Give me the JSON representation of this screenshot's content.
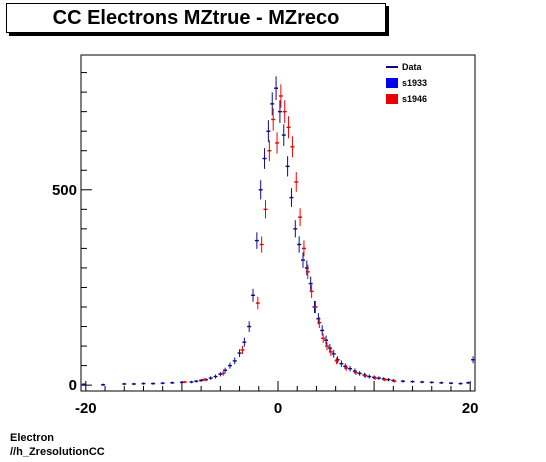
{
  "chart_data": {
    "type": "scatter",
    "title": "CC Electrons MZtrue - MZreco",
    "xlabel": "",
    "ylabel": "",
    "xlim": [
      -20.5,
      20.5
    ],
    "ylim": [
      -15,
      845
    ],
    "x_ticks": [
      -20,
      0,
      20
    ],
    "y_ticks": [
      0,
      500
    ],
    "grid": false,
    "legend_position": "top-right",
    "legend": [
      {
        "label": "Data",
        "style": "line",
        "color": "#0a0a8a"
      },
      {
        "label": "s1933",
        "style": "box",
        "color": "#0000ee"
      },
      {
        "label": "s1946",
        "style": "box",
        "color": "#ee0000"
      }
    ],
    "series": [
      {
        "name": "Data",
        "color": "#0a0a8a",
        "x": [
          -20.2,
          -18.2,
          -16,
          -15,
          -14,
          -13,
          -12,
          -11,
          -10,
          -9,
          -8.5,
          -8,
          -7.5,
          -7,
          -6.5,
          -6,
          -5.5,
          -5,
          -4.5,
          -4,
          -3.5,
          -3,
          -2.6,
          -2.2,
          -1.8,
          -1.4,
          -1,
          -0.6,
          -0.2,
          0.2,
          0.6,
          1,
          1.4,
          1.8,
          2.2,
          2.6,
          3,
          3.4,
          3.8,
          4.2,
          4.6,
          5,
          5.4,
          5.8,
          6.2,
          6.6,
          7,
          7.5,
          8,
          8.5,
          9,
          9.5,
          10,
          10.5,
          11,
          11.5,
          12,
          13,
          14,
          15,
          16,
          17,
          18,
          19,
          19.8,
          20.3
        ],
        "y": [
          2,
          1,
          3,
          3,
          4,
          4,
          5,
          6,
          7,
          8,
          10,
          12,
          14,
          18,
          22,
          28,
          38,
          50,
          62,
          82,
          110,
          150,
          230,
          370,
          500,
          580,
          650,
          720,
          760,
          700,
          640,
          560,
          480,
          400,
          360,
          320,
          300,
          260,
          200,
          170,
          140,
          115,
          95,
          80,
          65,
          55,
          48,
          42,
          36,
          30,
          26,
          22,
          20,
          18,
          16,
          14,
          12,
          10,
          9,
          8,
          7,
          6,
          5,
          4,
          6,
          65
        ]
      },
      {
        "name": "s1946",
        "color": "#ee0000",
        "x": [
          -9.7,
          -7.7,
          -5.7,
          -3.7,
          -2.1,
          -1.7,
          -1.3,
          -0.9,
          -0.5,
          -0.1,
          0.3,
          0.7,
          1.1,
          1.5,
          1.9,
          2.3,
          2.7,
          3.1,
          3.5,
          3.9,
          4.3,
          4.7,
          5.1,
          5.5,
          6.1,
          7.1,
          8.1,
          9.1,
          10.1,
          11.1,
          12.1
        ],
        "y": [
          8,
          14,
          30,
          90,
          210,
          360,
          450,
          600,
          680,
          620,
          740,
          700,
          660,
          610,
          520,
          430,
          350,
          290,
          240,
          200,
          160,
          120,
          100,
          85,
          62,
          44,
          32,
          24,
          18,
          14,
          10
        ]
      }
    ]
  }
}
